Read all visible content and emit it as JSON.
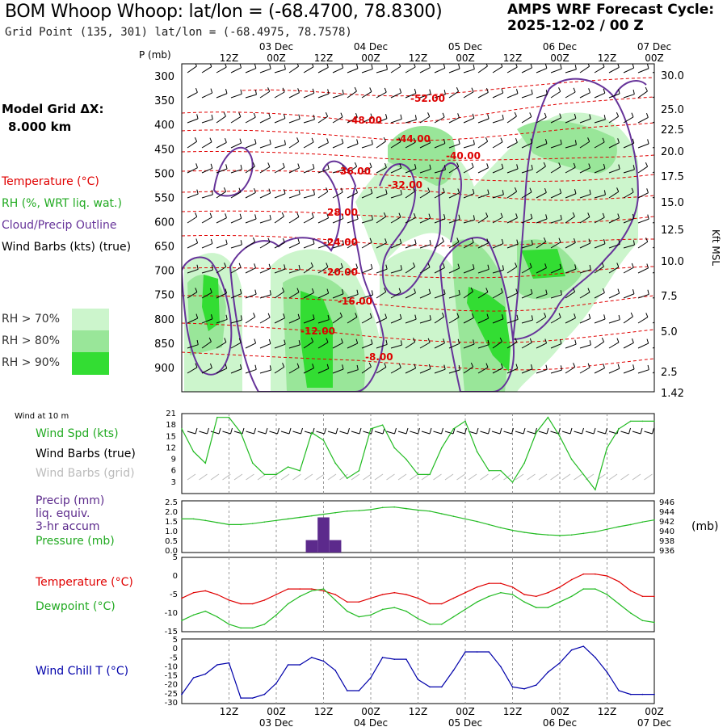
{
  "header": {
    "title": "BOM Whoop Whoop:  lat/lon = (-68.4700, 78.8300)",
    "subtitle": "Grid Point (135, 301) lat/lon = (-68.4975, 78.7578)",
    "cycle_line1": "AMPS WRF Forecast Cycle:",
    "cycle_line2": "2025-12-02 / 00  Z"
  },
  "sidebar": {
    "model_grid_label": "Model Grid ΔX:",
    "model_grid_value": "8.000 km",
    "legend_temperature": "Temperature (°C)",
    "legend_rh": "RH (%, WRT liq. wat.)",
    "legend_cloud": "Cloud/Precip Outline",
    "legend_wind": "Wind Barbs (kts) (true)",
    "rh_bins": [
      {
        "label": "RH > 70%",
        "color": "#ccf5cc"
      },
      {
        "label": "RH > 80%",
        "color": "#99e699"
      },
      {
        "label": "RH > 90%",
        "color": "#33dd33"
      }
    ],
    "wind10m_title": "Wind at 10 m",
    "wind_spd_label": "Wind Spd (kts)",
    "wind_barbs_true_label": "Wind Barbs (true)",
    "wind_barbs_grid_label": "Wind Barbs (grid)",
    "precip_label": "Precip (mm)",
    "precip_sub1": "liq. equiv.",
    "precip_sub2": "3-hr accum",
    "pressure_label": "Pressure (mb)",
    "pressure_unit": "(mb)",
    "temp_label": "Temperature (°C)",
    "dewpoint_label": "Dewpoint (°C)",
    "windchill_label": "Wind Chill T (°C)"
  },
  "colors": {
    "temperature": "#e00000",
    "rh_line": "#22bb22",
    "cloud": "#663399",
    "precip": "#5c2a8c",
    "windchill": "#0000aa",
    "grid_barbs": "#bbbbbb"
  },
  "chart_data": [
    {
      "id": "cross_section",
      "type": "heatmap",
      "ylabel": "P (mb)",
      "y2label": "Kft MSL",
      "pressure_ticks": [
        300,
        350,
        400,
        450,
        500,
        550,
        600,
        650,
        700,
        750,
        800,
        850,
        900
      ],
      "height_ticks": [
        "30.0",
        "25.0",
        "22.5",
        "20.0",
        "17.5",
        "15.0",
        "12.5",
        "10.0",
        "7.5",
        "5.0",
        "2.5",
        "1.42"
      ],
      "time_ticks": [
        "12Z",
        "00Z",
        "12Z",
        "00Z",
        "12Z",
        "00Z",
        "12Z",
        "00Z",
        "12Z",
        "00Z"
      ],
      "date_labels": [
        "03 Dec",
        "04 Dec",
        "05 Dec",
        "06 Dec",
        "07 Dec"
      ],
      "temperature_labels": [
        "-52.00",
        "-48.00",
        "-44.00",
        "-40.00",
        "-36.00",
        "-32.00",
        "-28.00",
        "-24.00",
        "-20.00",
        "-16.00",
        "-12.00",
        "-8.00"
      ]
    },
    {
      "id": "wind_speed",
      "type": "line",
      "ylabel": "Wind Spd (kts)",
      "ylim": [
        0,
        21
      ],
      "yticks": [
        3,
        6,
        9,
        12,
        15,
        18,
        21
      ],
      "x_hours": [
        0,
        3,
        6,
        9,
        12,
        15,
        18,
        21,
        24,
        27,
        30,
        33,
        36,
        39,
        42,
        45,
        48,
        51,
        54,
        57,
        60,
        63,
        66,
        69,
        72,
        75,
        78,
        81,
        84,
        87,
        90,
        93,
        96,
        99,
        102,
        105,
        108,
        111,
        114,
        117,
        120
      ],
      "values": [
        17,
        11,
        8,
        20,
        20,
        16,
        8,
        5,
        5,
        7,
        6,
        16,
        14,
        8,
        4,
        6,
        17,
        18,
        12,
        9,
        5,
        5,
        12,
        17,
        19,
        11,
        6,
        6,
        3,
        8,
        16,
        20,
        15,
        9,
        5,
        1,
        12,
        17,
        19,
        19,
        19
      ]
    },
    {
      "id": "precip_pressure",
      "type": "bar",
      "ylabel": "Precip (mm)",
      "ylim": [
        0,
        2.5
      ],
      "yticks": [
        "2.5",
        "2.0",
        "1.5",
        "1.0",
        "0.5",
        "0.0"
      ],
      "precip_x_hours": [
        33,
        36,
        39
      ],
      "precip_values": [
        0.6,
        1.7,
        0.6
      ],
      "series": [
        {
          "name": "Pressure (mb)",
          "y2lim": [
            936,
            946
          ],
          "y2ticks": [
            "946",
            "944",
            "942",
            "940",
            "938",
            "936"
          ],
          "x_hours": [
            0,
            3,
            6,
            9,
            12,
            15,
            18,
            21,
            24,
            27,
            30,
            33,
            36,
            39,
            42,
            45,
            48,
            51,
            54,
            57,
            60,
            63,
            66,
            69,
            72,
            75,
            78,
            81,
            84,
            87,
            90,
            93,
            96,
            99,
            102,
            105,
            108,
            111,
            114,
            117,
            120
          ],
          "values": [
            942.5,
            942.5,
            942.2,
            941.8,
            941.4,
            941.4,
            941.6,
            941.9,
            942.2,
            942.5,
            942.8,
            943.1,
            943.4,
            943.7,
            944.0,
            944.1,
            944.3,
            944.7,
            944.8,
            944.5,
            944.2,
            944.0,
            943.5,
            943.0,
            942.5,
            942.0,
            941.4,
            940.8,
            940.3,
            939.9,
            939.6,
            939.4,
            939.3,
            939.4,
            939.7,
            940.0,
            940.5,
            941.0,
            941.4,
            941.9,
            942.3
          ]
        }
      ]
    },
    {
      "id": "temp_dewpoint",
      "type": "line",
      "ylim": [
        -15,
        5
      ],
      "yticks": [
        "5",
        "0",
        "-5",
        "-10",
        "-15"
      ],
      "x_hours": [
        0,
        3,
        6,
        9,
        12,
        15,
        18,
        21,
        24,
        27,
        30,
        33,
        36,
        39,
        42,
        45,
        48,
        51,
        54,
        57,
        60,
        63,
        66,
        69,
        72,
        75,
        78,
        81,
        84,
        87,
        90,
        93,
        96,
        99,
        102,
        105,
        108,
        111,
        114,
        117,
        120
      ],
      "series": [
        {
          "name": "Temperature (°C)",
          "values": [
            -6,
            -4.5,
            -4,
            -5,
            -6.5,
            -7.5,
            -7.5,
            -6.5,
            -5,
            -3.5,
            -3.5,
            -3.5,
            -4,
            -5,
            -7,
            -7,
            -6,
            -5,
            -4.5,
            -5,
            -6,
            -7.5,
            -7.5,
            -6,
            -4.5,
            -3,
            -2,
            -2,
            -3,
            -5,
            -5.5,
            -4.5,
            -3,
            -1,
            0.5,
            0.5,
            0,
            -1.5,
            -4,
            -5.5,
            -5.5
          ]
        },
        {
          "name": "Dewpoint (°C)",
          "values": [
            -12,
            -10.5,
            -9.5,
            -11,
            -13,
            -14,
            -14,
            -13,
            -10.5,
            -7.5,
            -5.5,
            -4,
            -3.5,
            -6.5,
            -9.5,
            -11,
            -10.5,
            -9,
            -8.5,
            -9.5,
            -11.5,
            -13,
            -13,
            -11,
            -9,
            -7,
            -5.5,
            -4.5,
            -5,
            -7,
            -8.5,
            -8.5,
            -7,
            -5.5,
            -3.5,
            -3.5,
            -5,
            -7.5,
            -10,
            -12,
            -12.5
          ]
        }
      ]
    },
    {
      "id": "wind_chill",
      "type": "line",
      "ylabel": "Wind Chill T (°C)",
      "ylim": [
        -30,
        5
      ],
      "yticks": [
        "5",
        "0",
        "-5",
        "-10",
        "-15",
        "-20",
        "-25",
        "-30"
      ],
      "x_hours": [
        0,
        3,
        6,
        9,
        12,
        15,
        18,
        21,
        24,
        27,
        30,
        33,
        36,
        39,
        42,
        45,
        48,
        51,
        54,
        57,
        60,
        63,
        66,
        69,
        72,
        75,
        78,
        81,
        84,
        87,
        90,
        93,
        96,
        99,
        102,
        105,
        108,
        111,
        114,
        117,
        120
      ],
      "values": [
        -25,
        -16,
        -14,
        -9,
        -8,
        -27,
        -27,
        -25,
        -19,
        -9,
        -9,
        -5,
        -7,
        -12,
        -23,
        -23,
        -16,
        -5,
        -6,
        -6,
        -17,
        -21,
        -21,
        -12,
        -2,
        -2,
        -2,
        -10,
        -21,
        -22,
        -20,
        -13,
        -8,
        -1,
        1,
        -5,
        -13,
        -23,
        -25,
        -25,
        -25
      ]
    }
  ]
}
